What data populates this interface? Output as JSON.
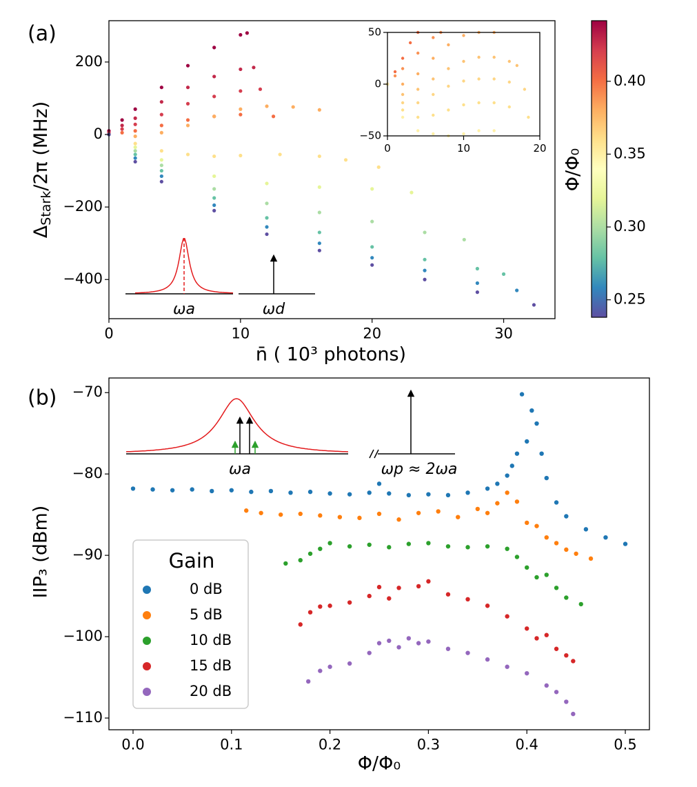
{
  "chart_data": [
    {
      "type": "scatter",
      "panel_label": "(a)",
      "xlabel": "n̄ ( 10³ photons)",
      "ylabel": [
        "Δ",
        "Stark",
        "/2π (MHz)"
      ],
      "xlim": [
        0,
        33.9
      ],
      "ylim": [
        -508,
        314
      ],
      "xticks": [
        0,
        10,
        20,
        30
      ],
      "yticks": [
        {
          "value": -400,
          "label": "−400"
        },
        {
          "value": -200,
          "label": "−200"
        },
        0,
        200
      ],
      "annotations": [
        "ωa",
        "ωd"
      ],
      "colorbar": {
        "label": "Φ/Φ₀",
        "lim": [
          0.238,
          0.4416
        ],
        "ticks": [
          0.25,
          {
            "value": 0.3,
            "label": "0.30"
          },
          0.35,
          {
            "value": 0.4,
            "label": "0.40"
          }
        ],
        "colors": [
          "#5e4fa2",
          "#3288bd",
          "#66c2a5",
          "#abdda4",
          "#e6f598",
          "#ffffbf",
          "#fee08b",
          "#fdae61",
          "#f46d43",
          "#d53e4f",
          "#9e0142"
        ]
      },
      "series": [
        {
          "color": "#9e0142",
          "x": [
            0,
            1,
            2,
            4,
            6,
            8,
            10,
            10.5
          ],
          "values": [
            10,
            40,
            70,
            130,
            190,
            240,
            275,
            280
          ]
        },
        {
          "color": "#c2294a",
          "x": [
            0,
            1,
            2,
            4,
            6,
            8,
            10,
            11
          ],
          "values": [
            5,
            25,
            45,
            90,
            130,
            160,
            180,
            185
          ]
        },
        {
          "color": "#d53e4f",
          "x": [
            0,
            1,
            2,
            4,
            6,
            8,
            10,
            11.5
          ],
          "values": [
            3,
            15,
            28,
            55,
            85,
            105,
            120,
            125
          ]
        },
        {
          "color": "#f46d43",
          "x": [
            0,
            1,
            2,
            4,
            6,
            8,
            10,
            12.5
          ],
          "values": [
            0,
            5,
            10,
            25,
            40,
            50,
            55,
            50
          ]
        },
        {
          "color": "#fdae61",
          "x": [
            0,
            2,
            4,
            6,
            8,
            10,
            12,
            14,
            16
          ],
          "values": [
            0,
            -5,
            5,
            25,
            50,
            70,
            78,
            76,
            68
          ]
        },
        {
          "color": "#fee08b",
          "x": [
            0,
            2,
            4,
            6,
            8,
            10,
            13,
            16,
            18,
            20.5
          ],
          "values": [
            0,
            -25,
            -45,
            -55,
            -60,
            -58,
            -55,
            -60,
            -70,
            -90
          ]
        },
        {
          "color": "#e6f598",
          "x": [
            0,
            2,
            4,
            8,
            12,
            16,
            20,
            23
          ],
          "values": [
            0,
            -35,
            -70,
            -115,
            -135,
            -145,
            -150,
            -160
          ]
        },
        {
          "color": "#abdda4",
          "x": [
            0,
            2,
            4,
            8,
            12,
            16,
            20,
            24,
            27
          ],
          "values": [
            0,
            -45,
            -85,
            -150,
            -190,
            -215,
            -240,
            -270,
            -290
          ]
        },
        {
          "color": "#66c2a5",
          "x": [
            0,
            2,
            4,
            8,
            12,
            16,
            20,
            24,
            28,
            30
          ],
          "values": [
            0,
            -55,
            -100,
            -175,
            -230,
            -270,
            -310,
            -345,
            -370,
            -385
          ]
        },
        {
          "color": "#3288bd",
          "x": [
            0,
            2,
            4,
            8,
            12,
            16,
            20,
            24,
            28,
            31
          ],
          "values": [
            0,
            -65,
            -115,
            -195,
            -255,
            -300,
            -340,
            -375,
            -410,
            -430
          ]
        },
        {
          "color": "#5e4fa2",
          "x": [
            0,
            2,
            4,
            8,
            12,
            16,
            20,
            24,
            28,
            32.3
          ],
          "values": [
            0,
            -75,
            -130,
            -210,
            -275,
            -320,
            -360,
            -400,
            -435,
            -470
          ]
        }
      ]
    },
    {
      "type": "scatter",
      "xlim": [
        0,
        20
      ],
      "ylim": [
        -50,
        50
      ],
      "xticks": [
        0,
        10,
        20
      ],
      "yticks": [
        {
          "value": -50,
          "label": "−50"
        },
        0,
        50
      ],
      "series": [
        {
          "color": "#f46d43",
          "x": [
            0,
            1,
            2,
            3,
            4
          ],
          "values": [
            0,
            12,
            25,
            40,
            50
          ]
        },
        {
          "color": "#f99153",
          "x": [
            0,
            1,
            2,
            4,
            6,
            7
          ],
          "values": [
            0,
            8,
            15,
            30,
            45,
            50
          ]
        },
        {
          "color": "#fdae61",
          "x": [
            0,
            2,
            4,
            6,
            8,
            10,
            12,
            14
          ],
          "values": [
            0,
            0,
            10,
            25,
            38,
            47,
            50,
            50
          ]
        },
        {
          "color": "#fdc374",
          "x": [
            0,
            2,
            4,
            6,
            8,
            10,
            12,
            14,
            16,
            17
          ],
          "values": [
            0,
            -10,
            -5,
            5,
            15,
            22,
            26,
            26,
            22,
            18
          ]
        },
        {
          "color": "#fed685",
          "x": [
            0,
            2,
            4,
            6,
            8,
            10,
            12,
            14,
            16,
            18
          ],
          "values": [
            0,
            -18,
            -18,
            -10,
            -2,
            3,
            5,
            5,
            2,
            -5
          ]
        },
        {
          "color": "#fee08b",
          "x": [
            0,
            2,
            4,
            6,
            8,
            10,
            12,
            14,
            16,
            18.5
          ],
          "values": [
            0,
            -25,
            -32,
            -30,
            -25,
            -20,
            -18,
            -18,
            -22,
            -32
          ]
        },
        {
          "color": "#fff0a6",
          "x": [
            0,
            2,
            4,
            6,
            8,
            10,
            12,
            14
          ],
          "values": [
            0,
            -32,
            -45,
            -48,
            -50,
            -48,
            -45,
            -45
          ]
        }
      ]
    },
    {
      "type": "scatter",
      "panel_label": "(b)",
      "xlabel": "Φ/Φ₀",
      "ylabel": "IIP₃ (dBm)",
      "xlim": [
        -0.0245,
        0.5245
      ],
      "ylim": [
        -111.44,
        -68.2
      ],
      "xticks": [
        {
          "value": 0,
          "label": "0.0"
        },
        0.1,
        0.2,
        0.3,
        0.4,
        0.5
      ],
      "yticks": [
        {
          "value": -110,
          "label": "−110"
        },
        {
          "value": -100,
          "label": "−100"
        },
        {
          "value": -90,
          "label": "−90"
        },
        {
          "value": -80,
          "label": "−80"
        },
        {
          "value": -70,
          "label": "−70"
        }
      ],
      "legend_title": "Gain",
      "legend": "lower left",
      "annotations": [
        "ωa",
        "ωp ≈ 2ωa"
      ],
      "series": [
        {
          "name": "0 dB",
          "color": "#1f77b4",
          "x": [
            0,
            0.02,
            0.04,
            0.06,
            0.08,
            0.1,
            0.12,
            0.14,
            0.16,
            0.18,
            0.2,
            0.22,
            0.24,
            0.25,
            0.26,
            0.28,
            0.3,
            0.32,
            0.34,
            0.36,
            0.37,
            0.38,
            0.385,
            0.39,
            0.395,
            0.4,
            0.405,
            0.41,
            0.415,
            0.42,
            0.43,
            0.44,
            0.46,
            0.48,
            0.5
          ],
          "values": [
            -81.8,
            -81.9,
            -82.0,
            -81.9,
            -82.1,
            -82.0,
            -82.2,
            -82.1,
            -82.3,
            -82.2,
            -82.4,
            -82.5,
            -82.3,
            -81.2,
            -82.4,
            -82.6,
            -82.5,
            -82.6,
            -82.3,
            -81.8,
            -81.2,
            -80.2,
            -79.0,
            -77.5,
            -70.2,
            -76.0,
            -72.2,
            -73.8,
            -77.5,
            -80.5,
            -83.5,
            -85.2,
            -86.8,
            -87.8,
            -88.6
          ]
        },
        {
          "name": "5 dB",
          "color": "#ff7f0e",
          "x": [
            0.115,
            0.13,
            0.15,
            0.17,
            0.19,
            0.21,
            0.23,
            0.25,
            0.27,
            0.29,
            0.31,
            0.33,
            0.35,
            0.36,
            0.37,
            0.38,
            0.39,
            0.4,
            0.41,
            0.42,
            0.43,
            0.44,
            0.45,
            0.465
          ],
          "values": [
            -84.5,
            -84.8,
            -85.0,
            -84.9,
            -85.1,
            -85.3,
            -85.4,
            -84.9,
            -85.6,
            -84.8,
            -84.6,
            -85.3,
            -84.3,
            -84.8,
            -83.6,
            -82.3,
            -83.4,
            -86.0,
            -86.4,
            -87.8,
            -88.5,
            -89.3,
            -89.8,
            -90.4
          ]
        },
        {
          "name": "10 dB",
          "color": "#2ca02c",
          "x": [
            0.155,
            0.17,
            0.18,
            0.19,
            0.2,
            0.22,
            0.24,
            0.26,
            0.28,
            0.3,
            0.32,
            0.34,
            0.36,
            0.38,
            0.39,
            0.4,
            0.41,
            0.42,
            0.43,
            0.44,
            0.455
          ],
          "values": [
            -91.0,
            -90.6,
            -89.8,
            -89.2,
            -88.5,
            -88.9,
            -88.7,
            -89.0,
            -88.6,
            -88.5,
            -88.9,
            -89.0,
            -88.9,
            -89.2,
            -90.2,
            -91.5,
            -92.7,
            -92.4,
            -94.0,
            -95.2,
            -96.0
          ]
        },
        {
          "name": "15 dB",
          "color": "#d62728",
          "x": [
            0.17,
            0.18,
            0.19,
            0.2,
            0.22,
            0.24,
            0.25,
            0.26,
            0.27,
            0.29,
            0.3,
            0.32,
            0.34,
            0.36,
            0.38,
            0.4,
            0.41,
            0.42,
            0.43,
            0.44,
            0.447
          ],
          "values": [
            -98.5,
            -97.0,
            -96.3,
            -96.2,
            -95.8,
            -95.0,
            -93.9,
            -95.3,
            -94.0,
            -93.8,
            -93.2,
            -94.8,
            -95.4,
            -96.2,
            -97.5,
            -99.0,
            -100.2,
            -99.8,
            -101.5,
            -102.3,
            -103.0
          ]
        },
        {
          "name": "20 dB",
          "color": "#9467bd",
          "x": [
            0.178,
            0.19,
            0.2,
            0.22,
            0.24,
            0.25,
            0.26,
            0.27,
            0.28,
            0.29,
            0.3,
            0.32,
            0.34,
            0.36,
            0.38,
            0.4,
            0.42,
            0.43,
            0.44,
            0.447
          ],
          "values": [
            -105.5,
            -104.2,
            -103.7,
            -103.3,
            -102.0,
            -100.8,
            -100.5,
            -101.3,
            -100.2,
            -100.8,
            -100.6,
            -101.5,
            -102.0,
            -102.8,
            -103.7,
            -104.5,
            -106.0,
            -106.8,
            -108.0,
            -109.5
          ]
        }
      ]
    }
  ]
}
